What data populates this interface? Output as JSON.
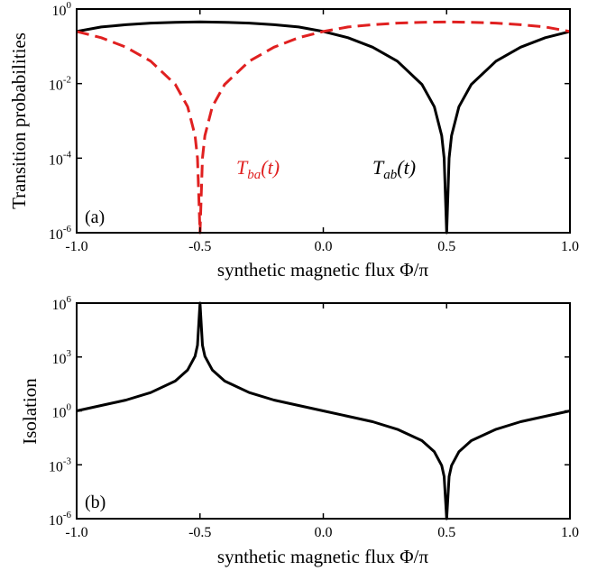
{
  "chart_data": [
    {
      "type": "line",
      "panel_label": "(a)",
      "xlabel": "synthetic magnetic flux  Φ/π",
      "ylabel": "Transition probabilities",
      "yscale": "log",
      "xlim": [
        -1.0,
        1.0
      ],
      "ylim": [
        1e-06,
        1
      ],
      "x_ticks": [
        "-1.0",
        "-0.5",
        "0.0",
        "0.5",
        "1.0"
      ],
      "y_ticks": [
        {
          "base": "10",
          "exp": "0"
        },
        {
          "base": "10",
          "exp": "-2"
        },
        {
          "base": "10",
          "exp": "-4"
        },
        {
          "base": "10",
          "exp": "-6"
        }
      ],
      "series": [
        {
          "label_main": "T",
          "label_sub": "ab",
          "label_suffix": "(t)",
          "color": "#000000",
          "style": "solid",
          "x": [
            -1.0,
            -0.9,
            -0.8,
            -0.7,
            -0.6,
            -0.5,
            -0.4,
            -0.3,
            -0.2,
            -0.1,
            0.0,
            0.1,
            0.2,
            0.3,
            0.4,
            0.45,
            0.48,
            0.49,
            0.5,
            0.51,
            0.52,
            0.55,
            0.6,
            0.7,
            0.8,
            0.9,
            1.0
          ],
          "y": [
            0.25,
            0.33,
            0.38,
            0.42,
            0.44,
            0.45,
            0.44,
            0.42,
            0.38,
            0.33,
            0.25,
            0.17,
            0.095,
            0.04,
            0.0095,
            0.0024,
            0.0004,
            0.0001,
            1e-06,
            0.0001,
            0.0004,
            0.0024,
            0.0095,
            0.04,
            0.095,
            0.17,
            0.25
          ]
        },
        {
          "label_main": "T",
          "label_sub": "ba",
          "label_suffix": "(t)",
          "color": "#e02020",
          "style": "dashed",
          "x": [
            -1.0,
            -0.9,
            -0.8,
            -0.7,
            -0.6,
            -0.55,
            -0.52,
            -0.51,
            -0.5,
            -0.49,
            -0.48,
            -0.45,
            -0.4,
            -0.3,
            -0.2,
            -0.1,
            0.0,
            0.1,
            0.2,
            0.3,
            0.4,
            0.5,
            0.6,
            0.7,
            0.8,
            0.9,
            1.0
          ],
          "y": [
            0.25,
            0.17,
            0.095,
            0.04,
            0.0095,
            0.0024,
            0.0004,
            0.0001,
            1e-06,
            0.0001,
            0.0004,
            0.0024,
            0.0095,
            0.04,
            0.095,
            0.17,
            0.25,
            0.33,
            0.38,
            0.42,
            0.44,
            0.45,
            0.44,
            0.42,
            0.38,
            0.33,
            0.25
          ]
        }
      ]
    },
    {
      "type": "line",
      "panel_label": "(b)",
      "xlabel": "synthetic magnetic flux  Φ/π",
      "ylabel": "Isolation",
      "yscale": "log",
      "xlim": [
        -1.0,
        1.0
      ],
      "ylim": [
        1e-06,
        1000000.0
      ],
      "x_ticks": [
        "-1.0",
        "-0.5",
        "0.0",
        "0.5",
        "1.0"
      ],
      "y_ticks": [
        {
          "base": "10",
          "exp": "6"
        },
        {
          "base": "10",
          "exp": "3"
        },
        {
          "base": "10",
          "exp": "0"
        },
        {
          "base": "10",
          "exp": "-3"
        },
        {
          "base": "10",
          "exp": "-6"
        }
      ],
      "series": [
        {
          "color": "#000000",
          "style": "solid",
          "x": [
            -1.0,
            -0.9,
            -0.8,
            -0.7,
            -0.6,
            -0.55,
            -0.52,
            -0.51,
            -0.5,
            -0.49,
            -0.48,
            -0.45,
            -0.4,
            -0.3,
            -0.2,
            -0.1,
            0.0,
            0.1,
            0.2,
            0.3,
            0.4,
            0.45,
            0.48,
            0.49,
            0.5,
            0.51,
            0.52,
            0.55,
            0.6,
            0.7,
            0.8,
            0.9,
            1.0
          ],
          "y": [
            1.0,
            2.0,
            4.0,
            10.5,
            46,
            190,
            1100,
            4500,
            1000000,
            4500,
            1100,
            190,
            46,
            10.5,
            4.0,
            2.0,
            1.0,
            0.5,
            0.25,
            0.095,
            0.022,
            0.0053,
            0.00091,
            0.00022,
            1e-06,
            0.00022,
            0.00091,
            0.0053,
            0.022,
            0.095,
            0.25,
            0.5,
            1.0
          ]
        }
      ]
    }
  ]
}
